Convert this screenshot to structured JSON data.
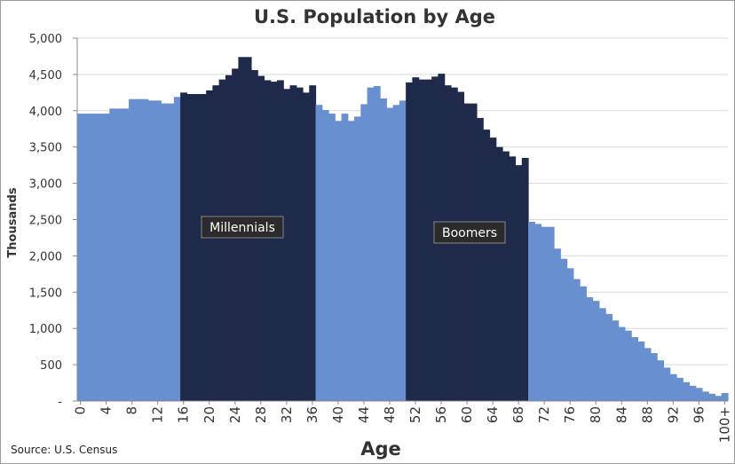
{
  "chart_data": {
    "type": "bar",
    "title": "U.S. Population by Age",
    "xlabel": "Age",
    "ylabel": "Thousands",
    "source": "Source: U.S. Census",
    "ylim": [
      0,
      5000
    ],
    "yticks": [
      {
        "value": 0,
        "label": "-"
      },
      {
        "value": 500,
        "label": "500"
      },
      {
        "value": 1000,
        "label": "1,000"
      },
      {
        "value": 1500,
        "label": "1,500"
      },
      {
        "value": 2000,
        "label": "2,000"
      },
      {
        "value": 2500,
        "label": "2,500"
      },
      {
        "value": 3000,
        "label": "3,000"
      },
      {
        "value": 3500,
        "label": "3,500"
      },
      {
        "value": 4000,
        "label": "4,000"
      },
      {
        "value": 4500,
        "label": "4,500"
      },
      {
        "value": 5000,
        "label": "5,000"
      }
    ],
    "xtick_labels": [
      "0",
      "4",
      "8",
      "12",
      "16",
      "20",
      "24",
      "28",
      "32",
      "36",
      "40",
      "44",
      "48",
      "52",
      "56",
      "60",
      "64",
      "68",
      "72",
      "76",
      "80",
      "84",
      "88",
      "92",
      "96",
      "100+"
    ],
    "grid": true,
    "legend": "none",
    "categories": [
      "0",
      "1",
      "2",
      "3",
      "4",
      "5",
      "6",
      "7",
      "8",
      "9",
      "10",
      "11",
      "12",
      "13",
      "14",
      "15",
      "16",
      "17",
      "18",
      "19",
      "20",
      "21",
      "22",
      "23",
      "24",
      "25",
      "26",
      "27",
      "28",
      "29",
      "30",
      "31",
      "32",
      "33",
      "34",
      "35",
      "36",
      "37",
      "38",
      "39",
      "40",
      "41",
      "42",
      "43",
      "44",
      "45",
      "46",
      "47",
      "48",
      "49",
      "50",
      "51",
      "52",
      "53",
      "54",
      "55",
      "56",
      "57",
      "58",
      "59",
      "60",
      "61",
      "62",
      "63",
      "64",
      "65",
      "66",
      "67",
      "68",
      "69",
      "70",
      "71",
      "72",
      "73",
      "74",
      "75",
      "76",
      "77",
      "78",
      "79",
      "80",
      "81",
      "82",
      "83",
      "84",
      "85",
      "86",
      "87",
      "88",
      "89",
      "90",
      "91",
      "92",
      "93",
      "94",
      "95",
      "96",
      "97",
      "98",
      "99",
      "100+"
    ],
    "values": [
      3960,
      3960,
      3960,
      3960,
      3960,
      4030,
      4030,
      4030,
      4160,
      4160,
      4160,
      4140,
      4140,
      4100,
      4100,
      4190,
      4250,
      4230,
      4230,
      4230,
      4280,
      4350,
      4430,
      4490,
      4580,
      4740,
      4740,
      4560,
      4480,
      4420,
      4400,
      4420,
      4300,
      4350,
      4320,
      4250,
      4350,
      4080,
      4010,
      3960,
      3860,
      3960,
      3860,
      3920,
      4090,
      4320,
      4340,
      4170,
      4040,
      4080,
      4140,
      4390,
      4460,
      4430,
      4430,
      4470,
      4510,
      4350,
      4320,
      4260,
      4100,
      4100,
      3900,
      3740,
      3630,
      3500,
      3440,
      3370,
      3250,
      3350,
      2470,
      2440,
      2400,
      2400,
      2100,
      1960,
      1830,
      1680,
      1580,
      1430,
      1380,
      1280,
      1200,
      1110,
      1020,
      970,
      880,
      820,
      730,
      660,
      560,
      460,
      370,
      320,
      260,
      210,
      180,
      130,
      100,
      70,
      110
    ],
    "highlight_color": "#1f2a4a",
    "base_color": "#6890d0",
    "series": [
      {
        "name": "Millennials",
        "start_age": 16,
        "end_age": 36
      },
      {
        "name": "Boomers",
        "start_age": 51,
        "end_age": 69
      }
    ]
  }
}
